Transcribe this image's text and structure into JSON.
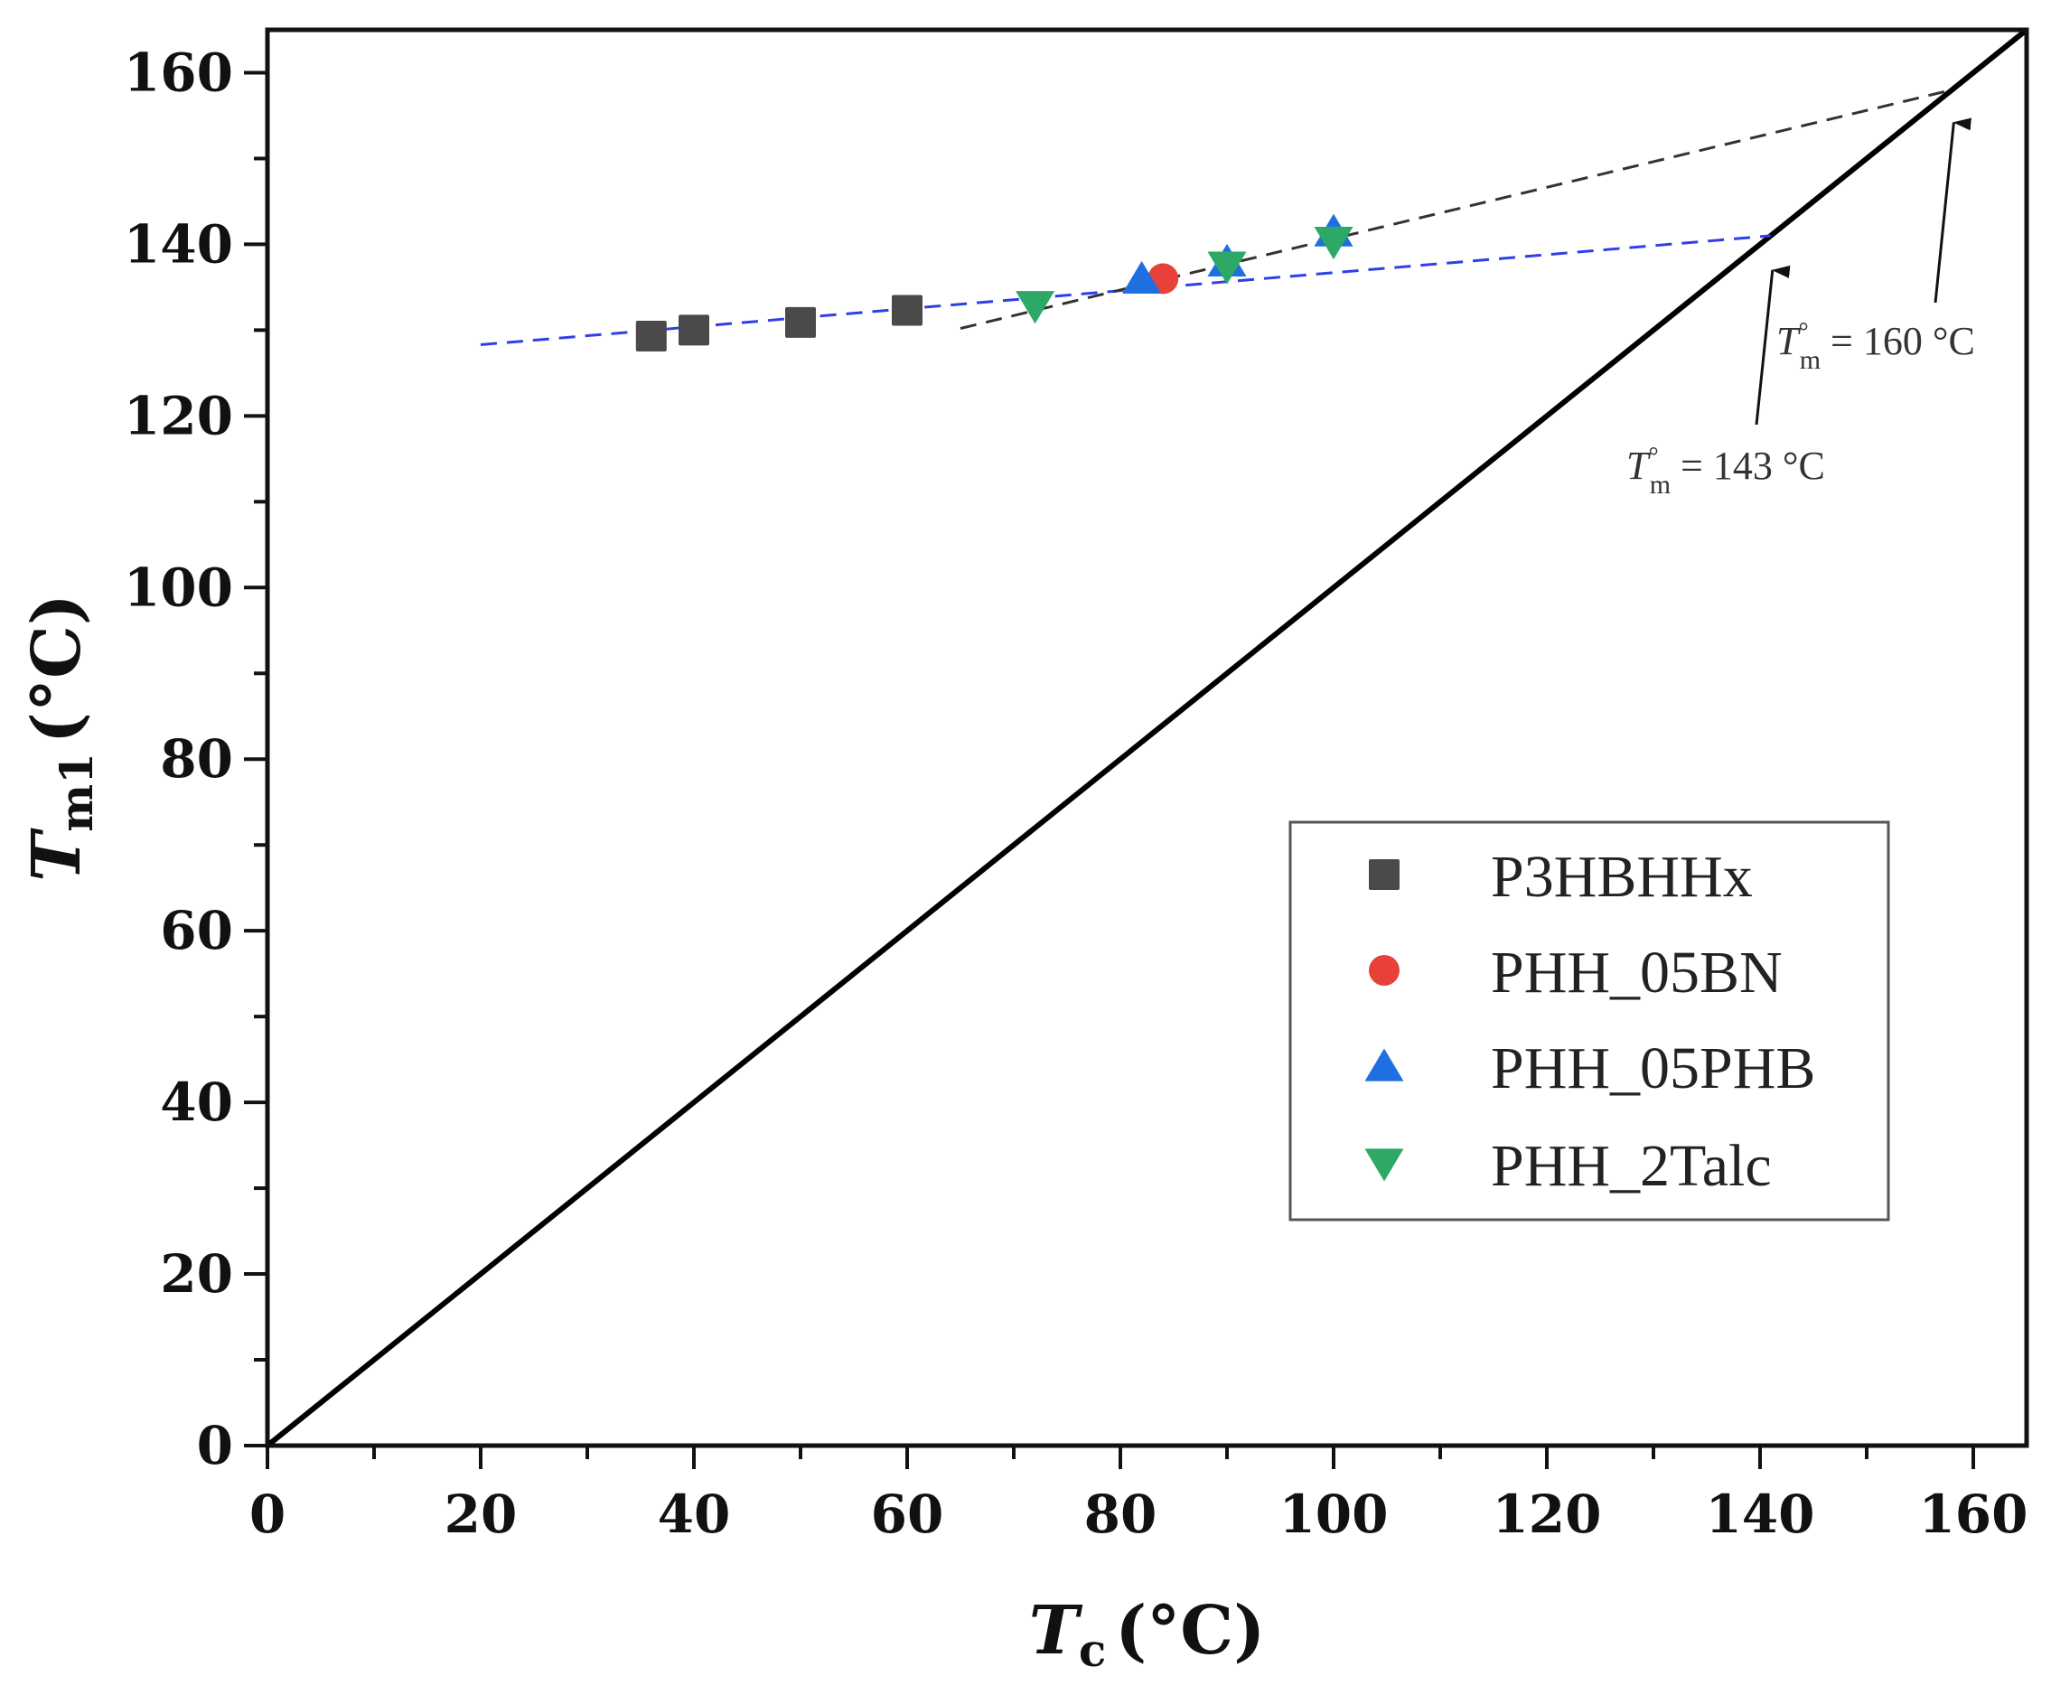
{
  "chart_data": {
    "type": "scatter",
    "xlabel": {
      "main": "T",
      "sub": "c",
      "unit": "(°C)"
    },
    "ylabel": {
      "main": "T",
      "sub": "m1",
      "unit": "(°C)"
    },
    "xlim": [
      0,
      165
    ],
    "ylim": [
      0,
      165
    ],
    "x_ticks": [
      0,
      20,
      40,
      60,
      80,
      100,
      120,
      140,
      160
    ],
    "y_ticks": [
      0,
      20,
      40,
      60,
      80,
      100,
      120,
      140,
      160
    ],
    "legend_position": "center-right",
    "series": [
      {
        "name": "P3HBHHx",
        "marker": "square",
        "color": "#4a4a4a",
        "x": [
          36,
          40,
          50,
          60
        ],
        "y": [
          129.3,
          130.0,
          130.9,
          132.3
        ]
      },
      {
        "name": "PHH_05BN",
        "marker": "circle",
        "color": "#e8413a",
        "x": [
          84
        ],
        "y": [
          136.0
        ]
      },
      {
        "name": "PHH_05PHB",
        "marker": "triangle-up",
        "color": "#1f6fe0",
        "x": [
          82,
          90,
          100
        ],
        "y": [
          136.0,
          138.0,
          141.5
        ]
      },
      {
        "name": "PHH_2Talc",
        "marker": "triangle-down",
        "color": "#2ea866",
        "x": [
          72,
          90,
          100
        ],
        "y": [
          132.8,
          137.4,
          140.3
        ]
      }
    ],
    "reference_lines": [
      {
        "name": "Tm = Tc",
        "style": "solid",
        "color": "#000000",
        "x": [
          0,
          165
        ],
        "y": [
          0,
          165
        ]
      },
      {
        "name": "fit-blue",
        "style": "dashed",
        "color": "#2f3fe8",
        "x": [
          20,
          141
        ],
        "y": [
          128.3,
          141
        ]
      },
      {
        "name": "fit-black",
        "style": "dashed",
        "color": "#333333",
        "x": [
          65,
          158
        ],
        "y": [
          130.2,
          158
        ]
      }
    ],
    "annotations": [
      {
        "label_main": "T",
        "label_sup": "°",
        "label_sub": "m",
        "label_rest": " = 160 °C",
        "value": 160,
        "point": [
          158,
          158
        ]
      },
      {
        "label_main": "T",
        "label_sup": "°",
        "label_sub": "m",
        "label_rest": " = 143 °C",
        "value": 143,
        "point": [
          141,
          141
        ]
      }
    ]
  }
}
